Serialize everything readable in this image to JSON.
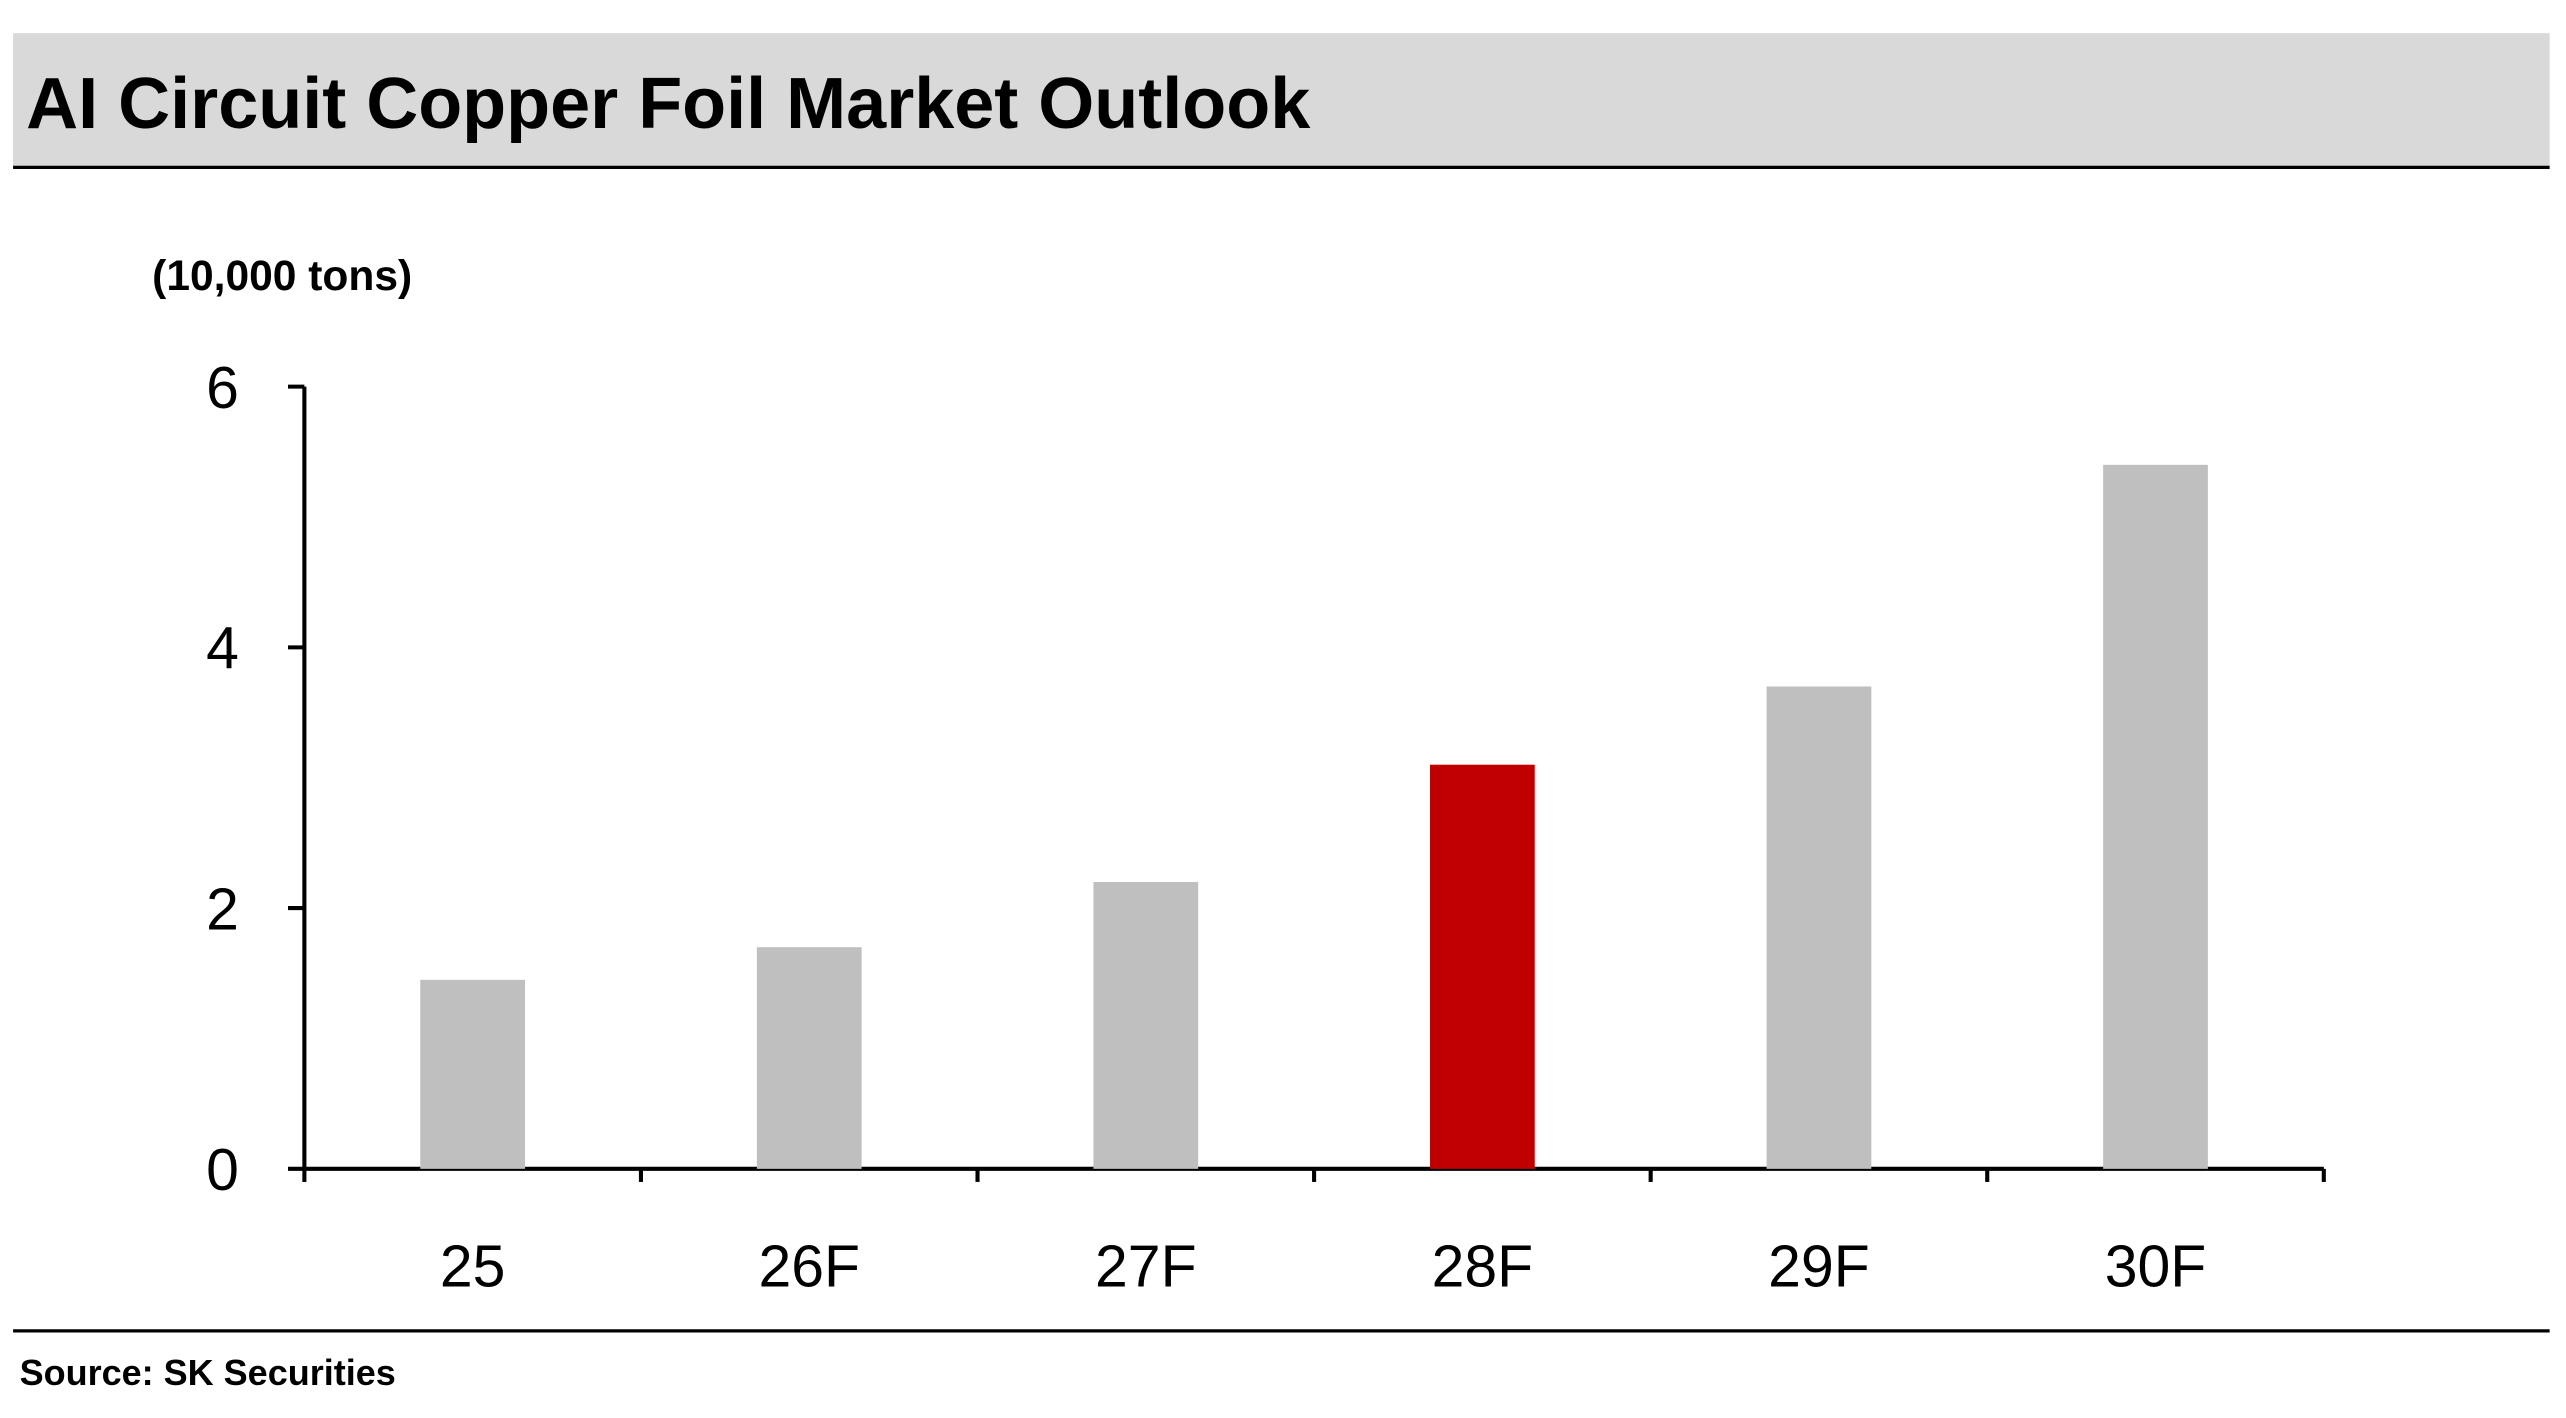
{
  "chart_data": {
    "type": "bar",
    "title": "AI Circuit Copper Foil Market Outlook",
    "y_label": "(10,000 tons)",
    "categories": [
      "25",
      "26F",
      "27F",
      "28F",
      "29F",
      "30F"
    ],
    "values": [
      1.45,
      1.7,
      2.2,
      3.1,
      3.7,
      5.4
    ],
    "colors": [
      "#bfbfbf",
      "#bfbfbf",
      "#bfbfbf",
      "#c00000",
      "#bfbfbf",
      "#bfbfbf"
    ],
    "ylim": [
      0,
      6
    ],
    "yticks": [
      0,
      2,
      4,
      6
    ],
    "grid": false,
    "source": "Source: SK Securities"
  }
}
